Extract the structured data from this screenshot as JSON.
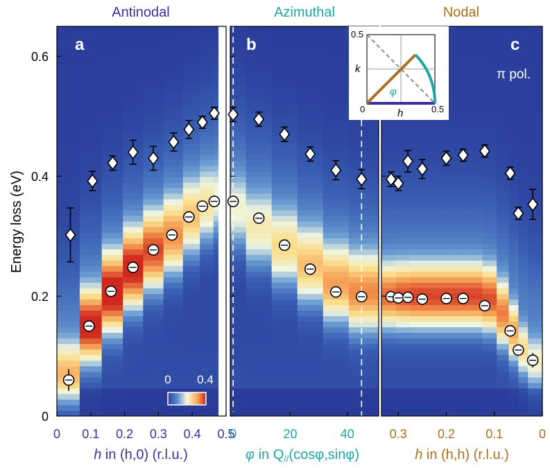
{
  "chart_data": [
    {
      "panel": "a",
      "type": "heatmap",
      "title": "Antinodal",
      "title_color": "#3a2f9e",
      "xlabel_var": "h",
      "xlabel_rest": " in (h,0) (r.l.u.)",
      "ylabel": "Energy loss (eV)",
      "xlim": [
        0,
        0.5
      ],
      "ylim": [
        0,
        0.65
      ],
      "xticks": [
        0,
        0.1,
        0.2,
        0.3,
        0.4,
        0.5
      ],
      "xtick_labels": [
        "0",
        "0.1",
        "0.2",
        "0.3",
        "0.4",
        "0.5"
      ],
      "yticks": [
        0,
        0.2,
        0.4,
        0.6
      ],
      "ytick_labels": [
        "0",
        "0.2",
        "0.4",
        "0.6"
      ],
      "columns_x": [
        0.035,
        0.1,
        0.165,
        0.225,
        0.285,
        0.345,
        0.4,
        0.445,
        0.48
      ],
      "peak_energy": [
        0.07,
        0.15,
        0.205,
        0.245,
        0.275,
        0.3,
        0.33,
        0.35,
        0.36
      ],
      "peak_width": [
        0.05,
        0.055,
        0.06,
        0.06,
        0.06,
        0.06,
        0.06,
        0.06,
        0.06
      ],
      "peak_amp": [
        0.22,
        0.38,
        0.4,
        0.38,
        0.33,
        0.27,
        0.22,
        0.18,
        0.14
      ],
      "circles": {
        "x": [
          0.035,
          0.095,
          0.16,
          0.225,
          0.285,
          0.34,
          0.39,
          0.43,
          0.465
        ],
        "y": [
          0.06,
          0.15,
          0.208,
          0.248,
          0.277,
          0.302,
          0.332,
          0.35,
          0.358
        ],
        "err": [
          0.018,
          0.006,
          0.005,
          0.005,
          0.005,
          0.005,
          0.005,
          0.005,
          0.005
        ]
      },
      "diamonds": {
        "x": [
          0.04,
          0.105,
          0.165,
          0.225,
          0.285,
          0.345,
          0.39,
          0.43,
          0.465
        ],
        "y": [
          0.302,
          0.392,
          0.422,
          0.44,
          0.43,
          0.457,
          0.478,
          0.49,
          0.505
        ],
        "err": [
          0.045,
          0.016,
          0.012,
          0.02,
          0.02,
          0.015,
          0.015,
          0.01,
          0.01
        ]
      },
      "panel_letter": "a",
      "colorbar": {
        "min_label": "0",
        "max_label": "0.4"
      }
    },
    {
      "panel": "b",
      "type": "heatmap",
      "title": "Azimuthal",
      "title_color": "#1fa5a8",
      "xlabel_var": "φ",
      "xlabel_rest": " in Q",
      "xlabel_sub": "//",
      "xlabel_tail": "(cosφ,sinφ)",
      "xlim": [
        -1,
        51
      ],
      "xticks": [
        0,
        20,
        40
      ],
      "xtick_labels": [
        "0",
        "20",
        "40"
      ],
      "dashed_x": [
        0,
        45
      ],
      "columns_x": [
        0,
        9,
        18,
        27,
        36,
        45
      ],
      "peak_energy": [
        0.34,
        0.31,
        0.28,
        0.25,
        0.22,
        0.205
      ],
      "peak_width": [
        0.06,
        0.06,
        0.06,
        0.06,
        0.06,
        0.06
      ],
      "peak_amp": [
        0.14,
        0.16,
        0.19,
        0.22,
        0.25,
        0.27
      ],
      "circles": {
        "x": [
          0,
          9,
          18,
          27,
          36,
          45
        ],
        "y": [
          0.358,
          0.33,
          0.285,
          0.245,
          0.207,
          0.199
        ],
        "err": [
          0.005,
          0.005,
          0.005,
          0.005,
          0.005,
          0.005
        ]
      },
      "diamonds": {
        "x": [
          0,
          9,
          18,
          27,
          36,
          45
        ],
        "y": [
          0.503,
          0.495,
          0.47,
          0.437,
          0.41,
          0.395
        ],
        "err": [
          0.012,
          0.012,
          0.012,
          0.012,
          0.016,
          0.016
        ]
      },
      "panel_letter": "b",
      "inset": {
        "xlabel": "h",
        "ylabel": "k",
        "tick_max": "0.5",
        "origin": "0",
        "x_end": "0.5",
        "angle_label": "φ"
      }
    },
    {
      "panel": "c",
      "type": "heatmap",
      "title": "Nodal",
      "title_color": "#a8701e",
      "xlabel_var": "h",
      "xlabel_rest": " in (h,h) (r.l.u.)",
      "xlim": [
        0.335,
        0
      ],
      "xticks": [
        0.3,
        0.2,
        0.1,
        0
      ],
      "xtick_labels": [
        "0.3",
        "0.2",
        "0.1",
        "0"
      ],
      "columns_x": [
        0.32,
        0.29,
        0.26,
        0.23,
        0.2,
        0.17,
        0.14,
        0.11,
        0.08,
        0.06,
        0.04,
        0.02
      ],
      "peak_energy": [
        0.2,
        0.2,
        0.2,
        0.2,
        0.2,
        0.2,
        0.2,
        0.195,
        0.17,
        0.14,
        0.11,
        0.09
      ],
      "peak_width": [
        0.05,
        0.05,
        0.05,
        0.05,
        0.05,
        0.05,
        0.05,
        0.05,
        0.05,
        0.045,
        0.04,
        0.04
      ],
      "peak_amp": [
        0.3,
        0.32,
        0.33,
        0.33,
        0.33,
        0.33,
        0.33,
        0.32,
        0.28,
        0.24,
        0.18,
        0.14
      ],
      "circles": {
        "x": [
          0.315,
          0.3,
          0.28,
          0.25,
          0.2,
          0.165,
          0.12,
          0.067,
          0.05,
          0.02
        ],
        "y": [
          0.199,
          0.197,
          0.198,
          0.195,
          0.196,
          0.196,
          0.184,
          0.142,
          0.11,
          0.093
        ],
        "err": [
          0.005,
          0.005,
          0.005,
          0.005,
          0.005,
          0.005,
          0.005,
          0.006,
          0.006,
          0.012
        ]
      },
      "diamonds": {
        "x": [
          0.315,
          0.3,
          0.28,
          0.25,
          0.2,
          0.165,
          0.12,
          0.067,
          0.05,
          0.02
        ],
        "y": [
          0.395,
          0.388,
          0.425,
          0.412,
          0.43,
          0.435,
          0.442,
          0.405,
          0.338,
          0.353
        ],
        "err": [
          0.012,
          0.012,
          0.018,
          0.016,
          0.012,
          0.01,
          0.01,
          0.01,
          0.01,
          0.025
        ]
      },
      "panel_letter": "c",
      "annotation": "π pol."
    }
  ]
}
